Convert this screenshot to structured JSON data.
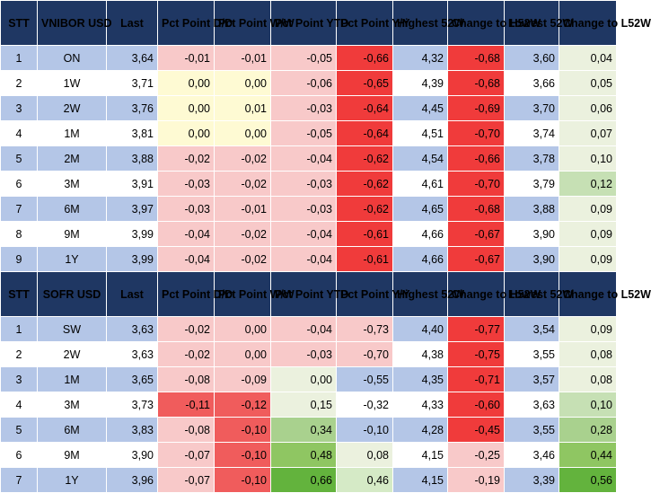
{
  "colors": {
    "header_bg": "#1f3763",
    "row_blue": "#b4c6e7",
    "row_white": "#ffffff"
  },
  "columns": [
    "STT",
    "",
    "Last",
    "Pct Point D/D",
    "Pct Point W/W",
    "Pct Point YTD",
    "Pct Point Y/Y",
    "Highest 52W",
    "Change to H52W",
    "Lowest 52W",
    "Change to L52W"
  ],
  "sections": [
    {
      "name": "VNIBOR USD",
      "headers": [
        "STT",
        "VNIBOR USD",
        "Last",
        "Pct Point D/D",
        "Pct Point W/W",
        "Pct Point YTD",
        "Pct Point Y/Y",
        "Highest 52W",
        "Change to H52W",
        "Lowest 52W",
        "Change to L52W"
      ],
      "rows": [
        {
          "stt": "1",
          "tenor": "ON",
          "last": "3,64",
          "dd": "-0,01",
          "ww": "-0,01",
          "ytd": "-0,05",
          "yy": "-0,66",
          "high": "4,32",
          "chh": "-0,68",
          "low": "3,60",
          "chl": "0,04",
          "bg": "#b4c6e7",
          "c_dd": "#f8c9c9",
          "c_ww": "#f8c9c9",
          "c_ytd": "#f8c9c9",
          "c_yy": "#f03b3b",
          "c_chh": "#f03b3b",
          "c_chl": "#ebf1de"
        },
        {
          "stt": "2",
          "tenor": "1W",
          "last": "3,71",
          "dd": "0,00",
          "ww": "0,00",
          "ytd": "-0,06",
          "yy": "-0,65",
          "high": "4,39",
          "chh": "-0,68",
          "low": "3,66",
          "chl": "0,05",
          "bg": "#ffffff",
          "c_dd": "#fefad3",
          "c_ww": "#fefad3",
          "c_ytd": "#f8c9c9",
          "c_yy": "#f03b3b",
          "c_chh": "#f03b3b",
          "c_chl": "#ebf1de"
        },
        {
          "stt": "3",
          "tenor": "2W",
          "last": "3,76",
          "dd": "0,00",
          "ww": "0,01",
          "ytd": "-0,03",
          "yy": "-0,64",
          "high": "4,45",
          "chh": "-0,69",
          "low": "3,70",
          "chl": "0,06",
          "bg": "#b4c6e7",
          "c_dd": "#fefad3",
          "c_ww": "#fefad3",
          "c_ytd": "#f8c9c9",
          "c_yy": "#f03b3b",
          "c_chh": "#f03b3b",
          "c_chl": "#ebf1de"
        },
        {
          "stt": "4",
          "tenor": "1M",
          "last": "3,81",
          "dd": "0,00",
          "ww": "0,00",
          "ytd": "-0,05",
          "yy": "-0,64",
          "high": "4,51",
          "chh": "-0,70",
          "low": "3,74",
          "chl": "0,07",
          "bg": "#ffffff",
          "c_dd": "#fefad3",
          "c_ww": "#fefad3",
          "c_ytd": "#f8c9c9",
          "c_yy": "#f03b3b",
          "c_chh": "#f03b3b",
          "c_chl": "#ebf1de"
        },
        {
          "stt": "5",
          "tenor": "2M",
          "last": "3,88",
          "dd": "-0,02",
          "ww": "-0,02",
          "ytd": "-0,04",
          "yy": "-0,62",
          "high": "4,54",
          "chh": "-0,66",
          "low": "3,78",
          "chl": "0,10",
          "bg": "#b4c6e7",
          "c_dd": "#f8c9c9",
          "c_ww": "#f8c9c9",
          "c_ytd": "#f8c9c9",
          "c_yy": "#f03b3b",
          "c_chh": "#f03b3b",
          "c_chl": "#ebf1de"
        },
        {
          "stt": "6",
          "tenor": "3M",
          "last": "3,91",
          "dd": "-0,03",
          "ww": "-0,02",
          "ytd": "-0,03",
          "yy": "-0,62",
          "high": "4,61",
          "chh": "-0,70",
          "low": "3,79",
          "chl": "0,12",
          "bg": "#ffffff",
          "c_dd": "#f8c9c9",
          "c_ww": "#f8c9c9",
          "c_ytd": "#f8c9c9",
          "c_yy": "#f03b3b",
          "c_chh": "#f03b3b",
          "c_chl": "#c6e0b4"
        },
        {
          "stt": "7",
          "tenor": "6M",
          "last": "3,97",
          "dd": "-0,03",
          "ww": "-0,01",
          "ytd": "-0,03",
          "yy": "-0,62",
          "high": "4,65",
          "chh": "-0,68",
          "low": "3,88",
          "chl": "0,09",
          "bg": "#b4c6e7",
          "c_dd": "#f8c9c9",
          "c_ww": "#f8c9c9",
          "c_ytd": "#f8c9c9",
          "c_yy": "#f03b3b",
          "c_chh": "#f03b3b",
          "c_chl": "#ebf1de"
        },
        {
          "stt": "8",
          "tenor": "9M",
          "last": "3,99",
          "dd": "-0,04",
          "ww": "-0,02",
          "ytd": "-0,04",
          "yy": "-0,61",
          "high": "4,66",
          "chh": "-0,67",
          "low": "3,90",
          "chl": "0,09",
          "bg": "#ffffff",
          "c_dd": "#f8c9c9",
          "c_ww": "#f8c9c9",
          "c_ytd": "#f8c9c9",
          "c_yy": "#f03b3b",
          "c_chh": "#f03b3b",
          "c_chl": "#ebf1de"
        },
        {
          "stt": "9",
          "tenor": "1Y",
          "last": "3,99",
          "dd": "-0,04",
          "ww": "-0,02",
          "ytd": "-0,04",
          "yy": "-0,61",
          "high": "4,66",
          "chh": "-0,67",
          "low": "3,90",
          "chl": "0,09",
          "bg": "#b4c6e7",
          "c_dd": "#f8c9c9",
          "c_ww": "#f8c9c9",
          "c_ytd": "#f8c9c9",
          "c_yy": "#f03b3b",
          "c_chh": "#f03b3b",
          "c_chl": "#ebf1de"
        }
      ]
    },
    {
      "name": "SOFR USD",
      "headers": [
        "STT",
        "SOFR USD",
        "Last",
        "Pct Point D/D",
        "Pct Point W/W",
        "Pct Point YTD",
        "Pct Point Y/Y",
        "Highest 52W",
        "Change to H52W",
        "Lowest 52W",
        "Change to L52W"
      ],
      "rows": [
        {
          "stt": "1",
          "tenor": "SW",
          "last": "3,63",
          "dd": "-0,02",
          "ww": "0,00",
          "ytd": "-0,04",
          "yy": "-0,73",
          "high": "4,40",
          "chh": "-0,77",
          "low": "3,54",
          "chl": "0,09",
          "bg": "#b4c6e7",
          "c_dd": "#f8c9c9",
          "c_ww": "#f8c9c9",
          "c_ytd": "#f8c9c9",
          "c_yy": "#f8c9c9",
          "c_chh": "#f03b3b",
          "c_chl": "#ebf1de"
        },
        {
          "stt": "2",
          "tenor": "2W",
          "last": "3,63",
          "dd": "-0,02",
          "ww": "0,00",
          "ytd": "-0,03",
          "yy": "-0,70",
          "high": "4,38",
          "chh": "-0,75",
          "low": "3,55",
          "chl": "0,08",
          "bg": "#ffffff",
          "c_dd": "#f8c9c9",
          "c_ww": "#f8c9c9",
          "c_ytd": "#f8c9c9",
          "c_yy": "#f8c9c9",
          "c_chh": "#f03b3b",
          "c_chl": "#ebf1de"
        },
        {
          "stt": "3",
          "tenor": "1M",
          "last": "3,65",
          "dd": "-0,08",
          "ww": "-0,09",
          "ytd": "0,00",
          "yy": "-0,55",
          "high": "4,35",
          "chh": "-0,71",
          "low": "3,57",
          "chl": "0,08",
          "bg": "#b4c6e7",
          "c_dd": "#f8c9c9",
          "c_ww": "#f8c9c9",
          "c_ytd": "#ebf1de",
          "c_yy": "#b4c6e7",
          "c_chh": "#f03b3b",
          "c_chl": "#ebf1de"
        },
        {
          "stt": "4",
          "tenor": "3M",
          "last": "3,73",
          "dd": "-0,11",
          "ww": "-0,12",
          "ytd": "0,15",
          "yy": "-0,32",
          "high": "4,33",
          "chh": "-0,60",
          "low": "3,63",
          "chl": "0,10",
          "bg": "#ffffff",
          "c_dd": "#f05c5c",
          "c_ww": "#f05c5c",
          "c_ytd": "#ebf1de",
          "c_yy": "#ffffff",
          "c_chh": "#f03b3b",
          "c_chl": "#c6e0b4"
        },
        {
          "stt": "5",
          "tenor": "6M",
          "last": "3,83",
          "dd": "-0,08",
          "ww": "-0,10",
          "ytd": "0,34",
          "yy": "-0,10",
          "high": "4,28",
          "chh": "-0,45",
          "low": "3,55",
          "chl": "0,28",
          "bg": "#b4c6e7",
          "c_dd": "#f8c9c9",
          "c_ww": "#f05c5c",
          "c_ytd": "#a9d18e",
          "c_yy": "#b4c6e7",
          "c_chh": "#f03b3b",
          "c_chl": "#a9d18e"
        },
        {
          "stt": "6",
          "tenor": "9M",
          "last": "3,90",
          "dd": "-0,07",
          "ww": "-0,10",
          "ytd": "0,48",
          "yy": "0,08",
          "high": "4,15",
          "chh": "-0,25",
          "low": "3,46",
          "chl": "0,44",
          "bg": "#ffffff",
          "c_dd": "#f8c9c9",
          "c_ww": "#f05c5c",
          "c_ytd": "#8fc662",
          "c_yy": "#ebf1de",
          "c_chh": "#f8c9c9",
          "c_chl": "#8fc662"
        },
        {
          "stt": "7",
          "tenor": "1Y",
          "last": "3,96",
          "dd": "-0,07",
          "ww": "-0,10",
          "ytd": "0,66",
          "yy": "0,46",
          "high": "4,15",
          "chh": "-0,19",
          "low": "3,39",
          "chl": "0,56",
          "bg": "#b4c6e7",
          "c_dd": "#f8c9c9",
          "c_ww": "#f05c5c",
          "c_ytd": "#63b33d",
          "c_yy": "#d5eac6",
          "c_chh": "#f8c9c9",
          "c_chl": "#63b33d"
        }
      ]
    }
  ]
}
